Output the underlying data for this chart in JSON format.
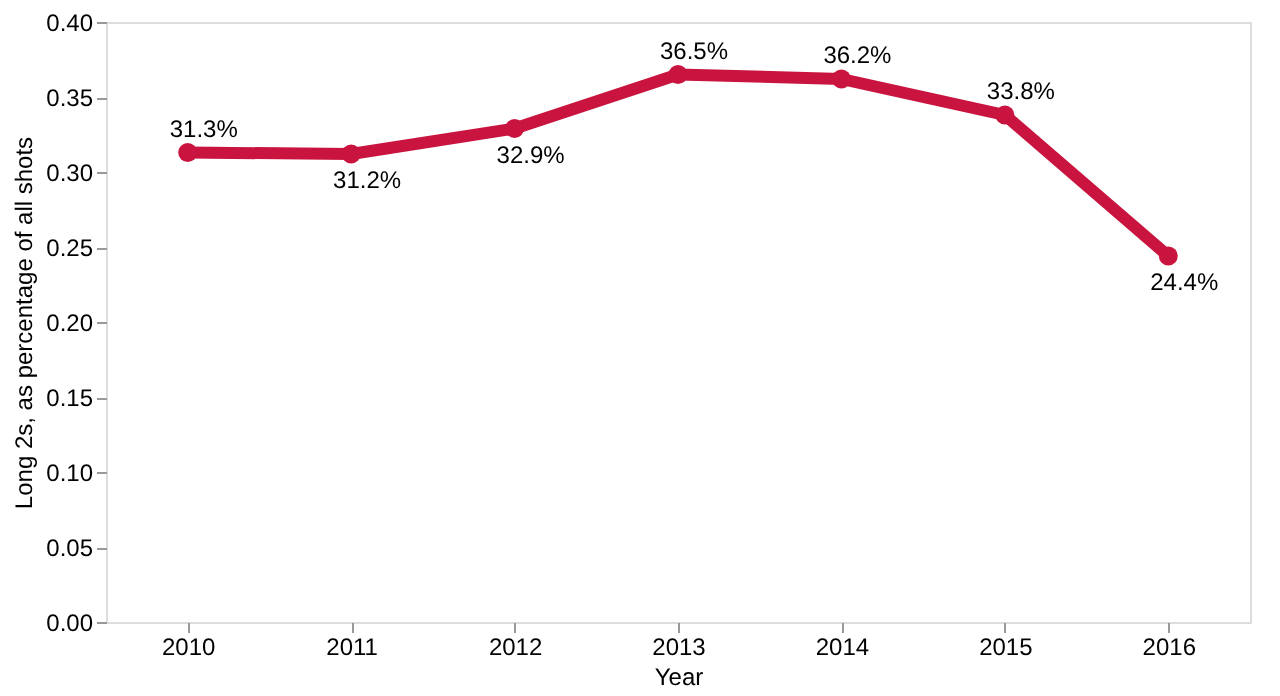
{
  "chart_data": {
    "type": "line",
    "xlabel": "Year",
    "ylabel": "Long 2s, as percentage of all shots",
    "categories": [
      "2010",
      "2011",
      "2012",
      "2013",
      "2014",
      "2015",
      "2016"
    ],
    "series": [
      {
        "color": "#c8143f",
        "values": [
          0.313,
          0.312,
          0.329,
          0.365,
          0.362,
          0.338,
          0.244
        ],
        "value_labels": [
          "31.3%",
          "31.2%",
          "32.9%",
          "36.5%",
          "36.2%",
          "33.8%",
          "24.4%"
        ]
      }
    ],
    "ylim": [
      0,
      0.4
    ],
    "yticks": [
      {
        "value": 0,
        "label": "0.00"
      },
      {
        "value": 0.05,
        "label": "0.05"
      },
      {
        "value": 0.1,
        "label": "0.10"
      },
      {
        "value": 0.15,
        "label": "0.15"
      },
      {
        "value": 0.2,
        "label": "0.20"
      },
      {
        "value": 0.25,
        "label": "0.25"
      },
      {
        "value": 0.3,
        "label": "0.30"
      },
      {
        "value": 0.35,
        "label": "0.35"
      },
      {
        "value": 0.4,
        "label": "0.40"
      }
    ],
    "grid": false,
    "marker": "circle",
    "line_style": "solid"
  }
}
